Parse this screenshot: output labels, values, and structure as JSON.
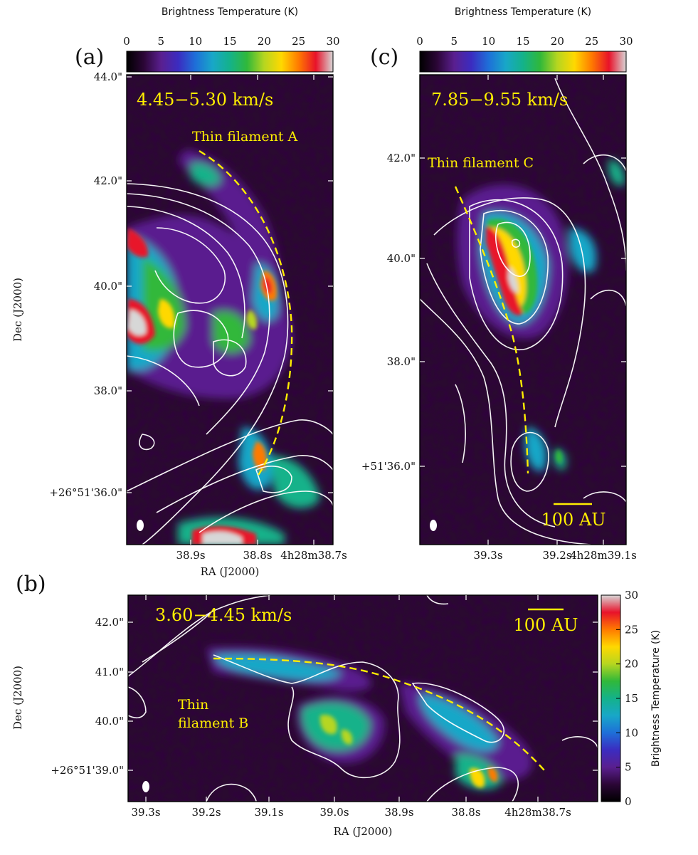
{
  "colors": {
    "annotation": "#ffee00",
    "contour": "#ffffff",
    "frame": "#000000",
    "background_map": "#2a0a30"
  },
  "colormap": {
    "name": "cubehelix-like",
    "stops": [
      "#000000",
      "#2b0636",
      "#5a1f8f",
      "#3b2cc0",
      "#1e6fd8",
      "#18a7c8",
      "#14b28a",
      "#30b83a",
      "#b6d620",
      "#ffd800",
      "#ff7a00",
      "#e8122a",
      "#d7d7d7"
    ]
  },
  "chart_data": [
    {
      "panel": "(a)",
      "type": "heatmap",
      "velocity_label": "4.45−5.30 km/s",
      "annotation": "Thin filament A",
      "xlabel": "RA (J2000)",
      "ylabel": "Dec (J2000)",
      "x_ticks": [
        "38.9s",
        "38.8s",
        "4h28m38.7s"
      ],
      "y_ticks": [
        "44.0\"",
        "42.0\"",
        "40.0\"",
        "38.0\"",
        "+26°51'36.0\""
      ],
      "colorbar": {
        "label": "Brightness Temperature (K)",
        "ticks": [
          "0",
          "5",
          "10",
          "15",
          "20",
          "25",
          "30"
        ],
        "range": [
          0,
          30
        ],
        "orientation": "horizontal-top"
      }
    },
    {
      "panel": "(c)",
      "type": "heatmap",
      "velocity_label": "7.85−9.55 km/s",
      "annotation": "Thin filament C",
      "scalebar": "100 AU",
      "x_ticks": [
        "39.3s",
        "39.2s",
        "4h28m39.1s"
      ],
      "y_ticks": [
        "42.0\"",
        "40.0\"",
        "38.0\"",
        "+51'36.0\""
      ],
      "colorbar": {
        "label": "Brightness Temperature (K)",
        "ticks": [
          "0",
          "5",
          "10",
          "15",
          "20",
          "25",
          "30"
        ],
        "range": [
          0,
          30
        ],
        "orientation": "horizontal-top"
      }
    },
    {
      "panel": "(b)",
      "type": "heatmap",
      "velocity_label": "3.60−4.45 km/s",
      "annotation_line1": "Thin",
      "annotation_line2": "filament B",
      "scalebar": "100 AU",
      "xlabel": "RA (J2000)",
      "ylabel": "Dec (J2000)",
      "x_ticks": [
        "39.3s",
        "39.2s",
        "39.1s",
        "39.0s",
        "38.9s",
        "38.8s",
        "4h28m38.7s"
      ],
      "y_ticks": [
        "42.0\"",
        "41.0\"",
        "40.0\"",
        "+26°51'39.0\""
      ],
      "colorbar": {
        "label": "Brightness Temperature (K)",
        "ticks": [
          "0",
          "5",
          "10",
          "15",
          "20",
          "25",
          "30"
        ],
        "range": [
          0,
          30
        ],
        "orientation": "vertical-right"
      }
    }
  ]
}
